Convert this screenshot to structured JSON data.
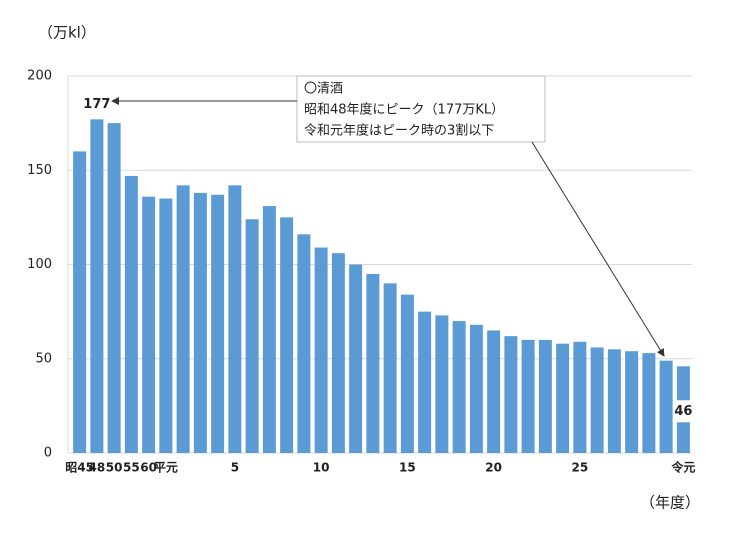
{
  "chart_data": {
    "type": "bar",
    "y_axis_label": "（万kl）",
    "x_axis_label": "（年度）",
    "annotation": {
      "lines": [
        "〇清酒",
        "昭和48年度にピーク（177万KL）",
        "令和元年度はピーク時の3割以下"
      ]
    },
    "categories": [
      "昭45",
      "48",
      "50",
      "55",
      "60",
      "平元",
      null,
      null,
      null,
      "5",
      null,
      null,
      null,
      null,
      "10",
      null,
      null,
      null,
      null,
      "15",
      null,
      null,
      null,
      null,
      "20",
      null,
      null,
      null,
      null,
      "25",
      null,
      null,
      null,
      null,
      null,
      "令元"
    ],
    "values": [
      160,
      177,
      175,
      147,
      136,
      135,
      142,
      138,
      137,
      142,
      124,
      131,
      125,
      116,
      109,
      106,
      100,
      95,
      90,
      84,
      75,
      73,
      70,
      68,
      65,
      62,
      60,
      60,
      58,
      59,
      56,
      55,
      54,
      53,
      49,
      46
    ],
    "value_labels": [
      null,
      "177",
      null,
      null,
      null,
      null,
      null,
      null,
      null,
      null,
      null,
      null,
      null,
      null,
      null,
      null,
      null,
      null,
      null,
      null,
      null,
      null,
      null,
      null,
      null,
      null,
      null,
      null,
      null,
      null,
      null,
      null,
      null,
      null,
      null,
      "46"
    ],
    "color": "#5b9bd5",
    "ylim": [
      0,
      200
    ],
    "yticks": [
      0,
      50,
      100,
      150,
      200
    ],
    "grid": true
  }
}
